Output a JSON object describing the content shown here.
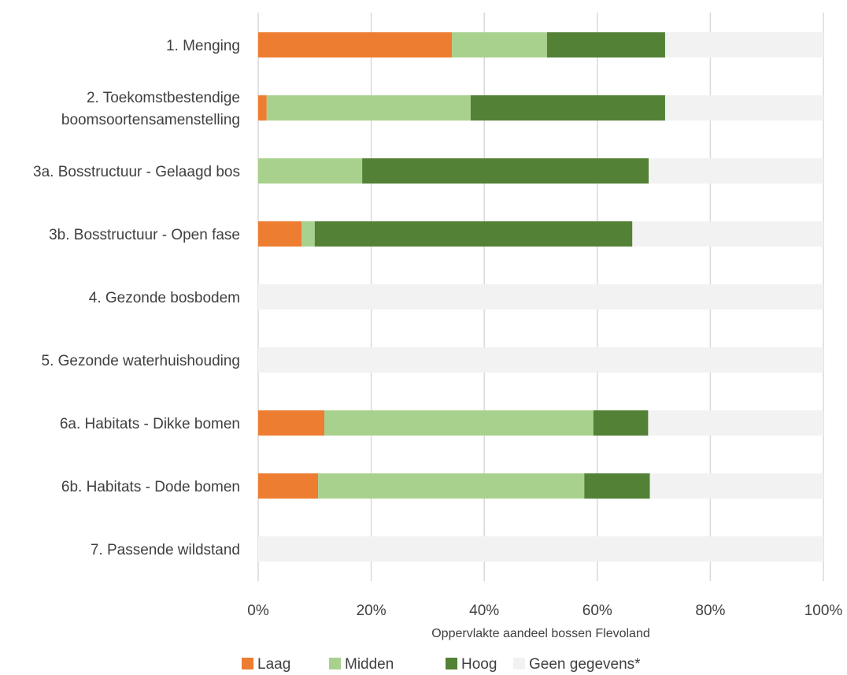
{
  "chart_data": {
    "type": "bar",
    "orientation": "horizontal",
    "stacked": true,
    "categories": [
      [
        "1. Menging"
      ],
      [
        "2. Toekomstbestendige",
        "boomsoortensamenstelling"
      ],
      [
        "3a. Bosstructuur - Gelaagd bos"
      ],
      [
        "3b. Bosstructuur - Open fase"
      ],
      [
        "4. Gezonde bosbodem"
      ],
      [
        "5. Gezonde waterhuishouding"
      ],
      [
        "6a. Habitats - Dikke bomen"
      ],
      [
        "6b. Habitats - Dode bomen"
      ],
      [
        "7. Passende wildstand"
      ]
    ],
    "series": [
      {
        "name": "Laag",
        "color": "#ED7D31",
        "values": [
          34.3,
          1.5,
          0,
          7.7,
          0,
          0,
          11.7,
          10.6,
          0
        ]
      },
      {
        "name": "Midden",
        "color": "#A9D18E",
        "values": [
          16.8,
          36.1,
          18.4,
          2.3,
          0,
          0,
          47.6,
          47.1,
          0
        ]
      },
      {
        "name": "Hoog",
        "color": "#538135",
        "values": [
          20.9,
          34.4,
          50.7,
          56.2,
          0,
          0,
          9.7,
          11.6,
          0
        ]
      },
      {
        "name": "Geen gegevens*",
        "color": "#F2F2F2",
        "values": [
          28.0,
          28.0,
          30.9,
          33.8,
          100,
          100,
          31.0,
          30.7,
          100
        ]
      }
    ],
    "xlim": [
      0,
      100
    ],
    "x_ticks": [
      "0%",
      "20%",
      "40%",
      "60%",
      "80%",
      "100%"
    ],
    "xlabel": "Oppervlakte aandeel bossen Flevoland",
    "ylabel": "",
    "title": "",
    "grid": "vertical",
    "legend_position": "bottom",
    "gridline_color": "#D9D9D9"
  }
}
